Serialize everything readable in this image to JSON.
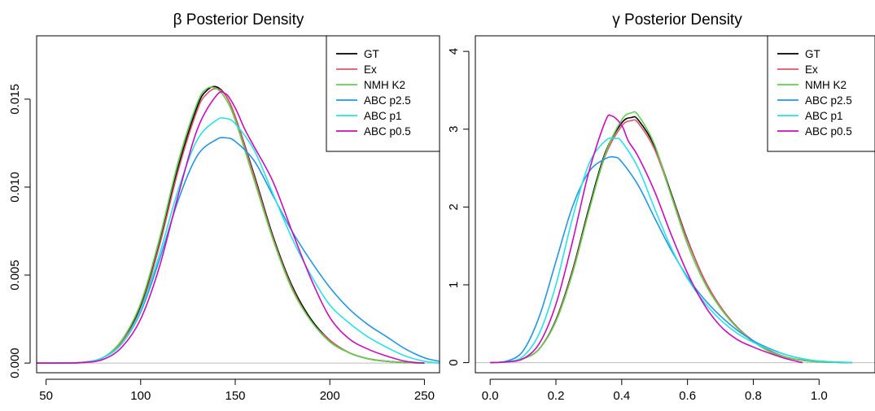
{
  "colors": {
    "GT": "#000000",
    "Ex": "#DF536B",
    "NMH K2": "#61D04F",
    "ABC p2.5": "#2297E6",
    "ABC p1": "#28E2E5",
    "ABC p0.5": "#CD0BBC",
    "zero_line": "#bebebe"
  },
  "chart_data": [
    {
      "type": "line",
      "title": "β Posterior Density",
      "xlabel": "",
      "ylabel": "",
      "xlim": [
        45,
        258
      ],
      "ylim": [
        -0.00055,
        0.0186
      ],
      "xticks": [
        50,
        100,
        150,
        200,
        250
      ],
      "yticks": [
        "0.000",
        "0.005",
        "0.010",
        "0.015"
      ],
      "yticks_values": [
        0,
        0.005,
        0.01,
        0.015
      ],
      "legend": "top-right",
      "series": [
        {
          "name": "GT",
          "x": [
            45,
            60,
            70,
            80,
            90,
            100,
            110,
            120,
            130,
            135,
            140,
            145,
            150,
            160,
            170,
            180,
            190,
            200,
            210,
            220,
            230,
            240,
            250
          ],
          "y": [
            0,
            0,
            5e-05,
            0.0003,
            0.0012,
            0.0032,
            0.0068,
            0.0112,
            0.0146,
            0.0155,
            0.0157,
            0.0152,
            0.014,
            0.0107,
            0.0072,
            0.0044,
            0.0025,
            0.0013,
            0.0006,
            0.00025,
            0.0001,
            3e-05,
            0
          ]
        },
        {
          "name": "Ex",
          "x": [
            45,
            60,
            70,
            80,
            90,
            100,
            110,
            120,
            130,
            135,
            140,
            145,
            150,
            160,
            170,
            180,
            190,
            200,
            210,
            220,
            230,
            240,
            250
          ],
          "y": [
            0,
            0,
            5e-05,
            0.0003,
            0.0012,
            0.0031,
            0.0067,
            0.011,
            0.0144,
            0.0153,
            0.0156,
            0.0152,
            0.014,
            0.0106,
            0.0071,
            0.0043,
            0.0024,
            0.0013,
            0.0006,
            0.00025,
            0.0001,
            3e-05,
            0
          ]
        },
        {
          "name": "NMH K2",
          "x": [
            45,
            60,
            70,
            80,
            90,
            100,
            110,
            120,
            130,
            135,
            140,
            145,
            150,
            160,
            170,
            180,
            190,
            200,
            210,
            220,
            230,
            240,
            250
          ],
          "y": [
            0,
            0,
            5e-05,
            0.0003,
            0.0013,
            0.0034,
            0.0071,
            0.0115,
            0.0148,
            0.0156,
            0.0156,
            0.015,
            0.0138,
            0.0104,
            0.007,
            0.0042,
            0.0024,
            0.0012,
            0.0006,
            0.00025,
            0.0001,
            3e-05,
            0
          ]
        },
        {
          "name": "ABC p2.5",
          "x": [
            45,
            60,
            70,
            80,
            90,
            100,
            110,
            120,
            130,
            140,
            145,
            150,
            160,
            170,
            180,
            190,
            200,
            210,
            220,
            230,
            240,
            250,
            258
          ],
          "y": [
            0,
            0,
            4e-05,
            0.0003,
            0.0011,
            0.0029,
            0.0059,
            0.0093,
            0.0118,
            0.0127,
            0.0128,
            0.0126,
            0.0115,
            0.0095,
            0.0075,
            0.0058,
            0.0043,
            0.0031,
            0.0022,
            0.0015,
            0.0008,
            0.0003,
            0.0001
          ]
        },
        {
          "name": "ABC p1",
          "x": [
            45,
            60,
            70,
            80,
            90,
            100,
            110,
            120,
            130,
            140,
            145,
            150,
            160,
            170,
            180,
            190,
            200,
            210,
            220,
            230,
            240,
            250,
            258
          ],
          "y": [
            0,
            0,
            4e-05,
            0.0003,
            0.0011,
            0.003,
            0.0062,
            0.0099,
            0.0127,
            0.0138,
            0.0139,
            0.0136,
            0.0121,
            0.0096,
            0.0071,
            0.005,
            0.0033,
            0.0023,
            0.0015,
            0.0009,
            0.0004,
            0.0001,
            0
          ]
        },
        {
          "name": "ABC p0.5",
          "x": [
            45,
            60,
            70,
            80,
            90,
            100,
            110,
            120,
            130,
            140,
            145,
            150,
            155,
            160,
            170,
            180,
            190,
            200,
            210,
            220,
            230,
            240,
            250
          ],
          "y": [
            0,
            0,
            3e-05,
            0.0002,
            0.0009,
            0.0025,
            0.0055,
            0.0096,
            0.0133,
            0.0152,
            0.0153,
            0.0145,
            0.0133,
            0.0123,
            0.0103,
            0.0075,
            0.0048,
            0.0026,
            0.0014,
            0.0008,
            0.0004,
            0.0001,
            0
          ]
        }
      ]
    },
    {
      "type": "line",
      "title": "γ Posterior Density",
      "xlabel": "",
      "ylabel": "",
      "xlim": [
        -0.045,
        1.17
      ],
      "ylim": [
        -0.13,
        4.2
      ],
      "xticks": [
        "0.0",
        "0.2",
        "0.4",
        "0.6",
        "0.8",
        "1.0"
      ],
      "xticks_values": [
        0,
        0.2,
        0.4,
        0.6,
        0.8,
        1.0
      ],
      "yticks": [
        0,
        1,
        2,
        3,
        4
      ],
      "legend": "top-right",
      "series": [
        {
          "name": "GT",
          "x": [
            0,
            0.05,
            0.1,
            0.15,
            0.2,
            0.25,
            0.3,
            0.35,
            0.4,
            0.43,
            0.45,
            0.5,
            0.55,
            0.6,
            0.65,
            0.7,
            0.75,
            0.8,
            0.85,
            0.9,
            0.95,
            1.0,
            1.1
          ],
          "y": [
            0,
            0.01,
            0.05,
            0.18,
            0.55,
            1.18,
            1.98,
            2.7,
            3.08,
            3.15,
            3.12,
            2.78,
            2.18,
            1.58,
            1.08,
            0.72,
            0.46,
            0.27,
            0.15,
            0.07,
            0.03,
            0.01,
            0
          ]
        },
        {
          "name": "Ex",
          "x": [
            0,
            0.05,
            0.1,
            0.15,
            0.2,
            0.25,
            0.3,
            0.35,
            0.4,
            0.43,
            0.45,
            0.5,
            0.55,
            0.6,
            0.65,
            0.7,
            0.75,
            0.8,
            0.85,
            0.9,
            0.95,
            1.0,
            1.1
          ],
          "y": [
            0,
            0.01,
            0.05,
            0.18,
            0.54,
            1.16,
            1.95,
            2.66,
            3.04,
            3.11,
            3.08,
            2.74,
            2.16,
            1.57,
            1.08,
            0.72,
            0.46,
            0.28,
            0.15,
            0.07,
            0.03,
            0.01,
            0
          ]
        },
        {
          "name": "NMH K2",
          "x": [
            0,
            0.05,
            0.1,
            0.15,
            0.2,
            0.25,
            0.3,
            0.35,
            0.4,
            0.43,
            0.45,
            0.5,
            0.55,
            0.6,
            0.65,
            0.7,
            0.75,
            0.8,
            0.85,
            0.9,
            0.95,
            1.0,
            1.1
          ],
          "y": [
            0,
            0.01,
            0.05,
            0.18,
            0.53,
            1.14,
            1.94,
            2.68,
            3.12,
            3.21,
            3.18,
            2.8,
            2.15,
            1.52,
            1.04,
            0.7,
            0.45,
            0.27,
            0.14,
            0.07,
            0.03,
            0.01,
            0
          ]
        },
        {
          "name": "ABC p2.5",
          "x": [
            0,
            0.05,
            0.1,
            0.15,
            0.2,
            0.25,
            0.3,
            0.35,
            0.38,
            0.4,
            0.45,
            0.5,
            0.55,
            0.6,
            0.65,
            0.7,
            0.75,
            0.8,
            0.85,
            0.9,
            0.95,
            1.0,
            1.1
          ],
          "y": [
            0,
            0.02,
            0.15,
            0.6,
            1.3,
            2.0,
            2.45,
            2.62,
            2.64,
            2.58,
            2.28,
            1.86,
            1.45,
            1.1,
            0.82,
            0.6,
            0.42,
            0.28,
            0.18,
            0.1,
            0.05,
            0.02,
            0
          ]
        },
        {
          "name": "ABC p1",
          "x": [
            0,
            0.05,
            0.1,
            0.15,
            0.2,
            0.25,
            0.3,
            0.35,
            0.38,
            0.4,
            0.45,
            0.5,
            0.55,
            0.6,
            0.65,
            0.7,
            0.75,
            0.8,
            0.85,
            0.9,
            0.95,
            1.0,
            1.1
          ],
          "y": [
            0,
            0.01,
            0.08,
            0.38,
            1.0,
            1.85,
            2.55,
            2.85,
            2.88,
            2.84,
            2.5,
            1.98,
            1.48,
            1.08,
            0.78,
            0.55,
            0.38,
            0.26,
            0.17,
            0.1,
            0.05,
            0.02,
            0
          ]
        },
        {
          "name": "ABC p0.5",
          "x": [
            0,
            0.05,
            0.1,
            0.15,
            0.2,
            0.25,
            0.3,
            0.35,
            0.37,
            0.4,
            0.42,
            0.45,
            0.5,
            0.55,
            0.6,
            0.65,
            0.7,
            0.75,
            0.8,
            0.85,
            0.9,
            0.95
          ],
          "y": [
            0,
            0.01,
            0.05,
            0.25,
            0.75,
            1.55,
            2.45,
            3.1,
            3.17,
            3.05,
            2.85,
            2.65,
            2.2,
            1.65,
            1.15,
            0.75,
            0.47,
            0.3,
            0.2,
            0.12,
            0.05,
            0
          ]
        }
      ]
    }
  ]
}
